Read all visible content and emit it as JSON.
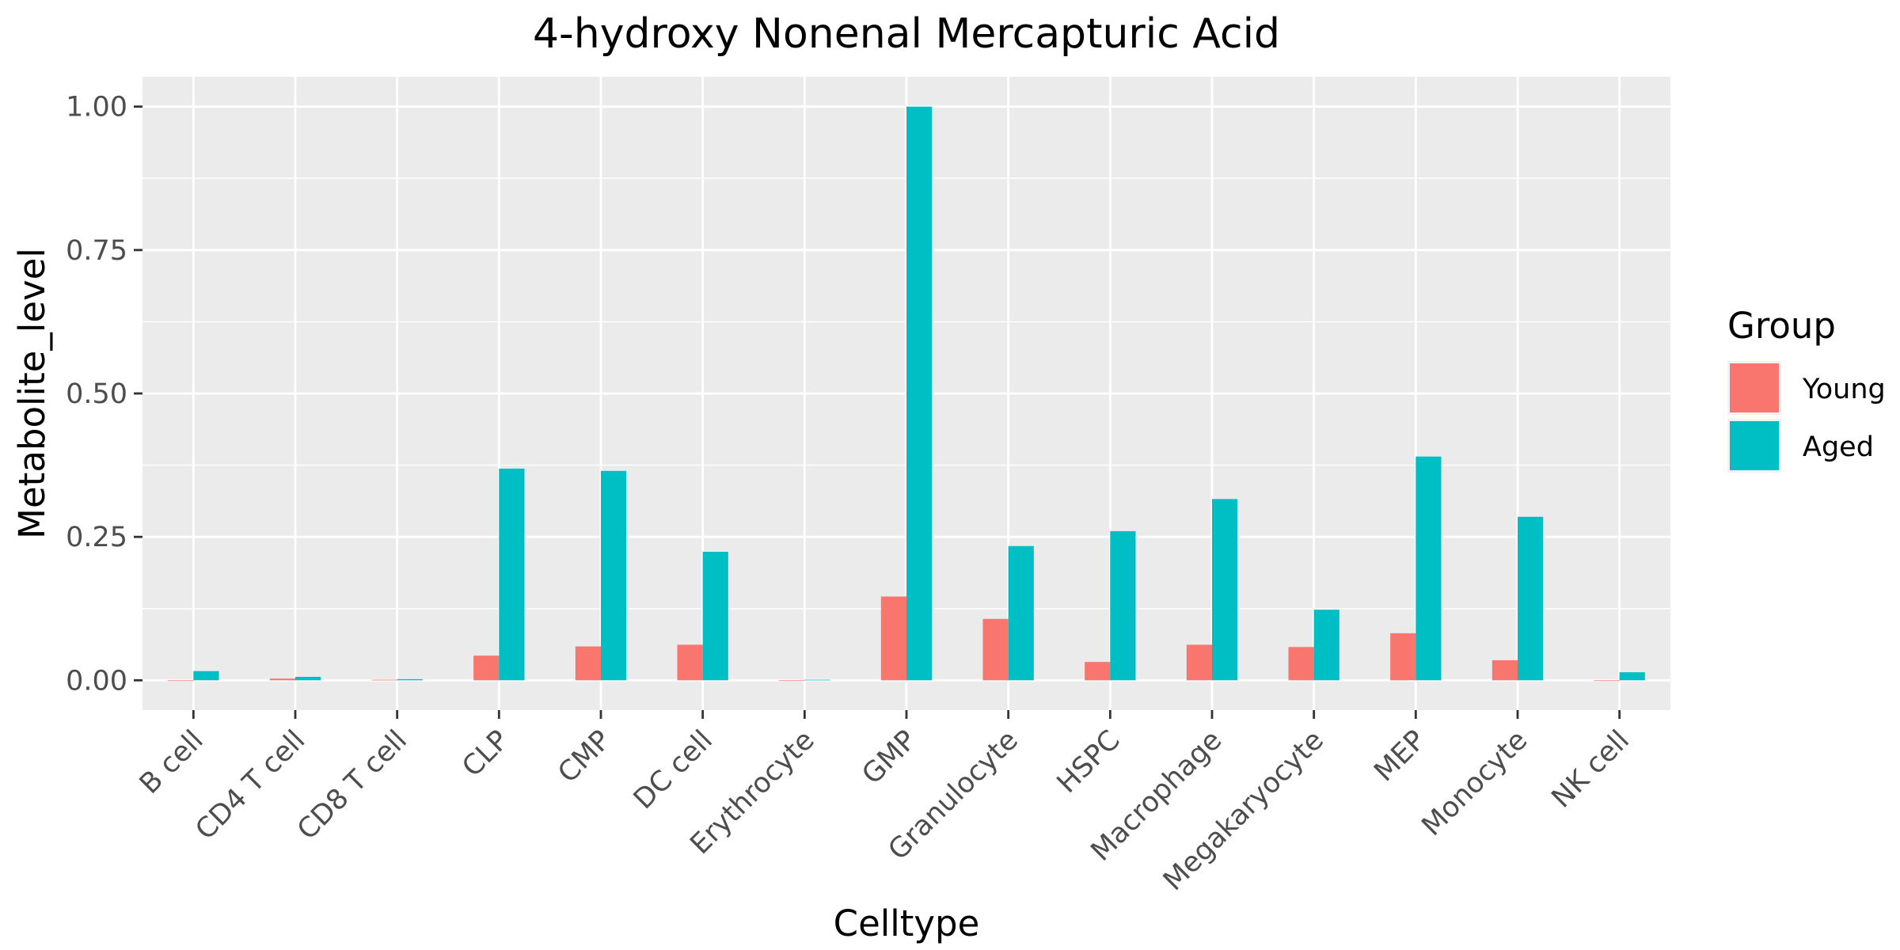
{
  "chart_data": {
    "type": "bar",
    "title": "4-hydroxy Nonenal Mercapturic Acid",
    "xlabel": "Celltype",
    "ylabel": "Metabolite_level",
    "categories": [
      "B cell",
      "CD4 T cell",
      "CD8 T cell",
      "CLP",
      "CMP",
      "DC cell",
      "Erythrocyte",
      "GMP",
      "Granulocyte",
      "HSPC",
      "Macrophage",
      "Megakaryocyte",
      "MEP",
      "Monocyte",
      "NK cell"
    ],
    "series": [
      {
        "name": "Young",
        "color": "#F8766D",
        "values": [
          0.0,
          0.003,
          0.001,
          0.043,
          0.059,
          0.062,
          0.0,
          0.146,
          0.107,
          0.032,
          0.062,
          0.058,
          0.082,
          0.035,
          0.0
        ]
      },
      {
        "name": "Aged",
        "color": "#00BFC4",
        "values": [
          0.016,
          0.006,
          0.002,
          0.369,
          0.365,
          0.224,
          0.001,
          1.0,
          0.234,
          0.26,
          0.316,
          0.123,
          0.39,
          0.285,
          0.014
        ]
      }
    ],
    "ylim": [
      -0.052,
      1.052
    ],
    "yticks": [
      0.0,
      0.25,
      0.5,
      0.75,
      1.0
    ],
    "ytick_labels": [
      "0.00",
      "0.25",
      "0.50",
      "0.75",
      "1.00"
    ],
    "legend_title": "Group",
    "legend_position": "right",
    "grid": true,
    "panel_background": "#EBEBEB"
  }
}
